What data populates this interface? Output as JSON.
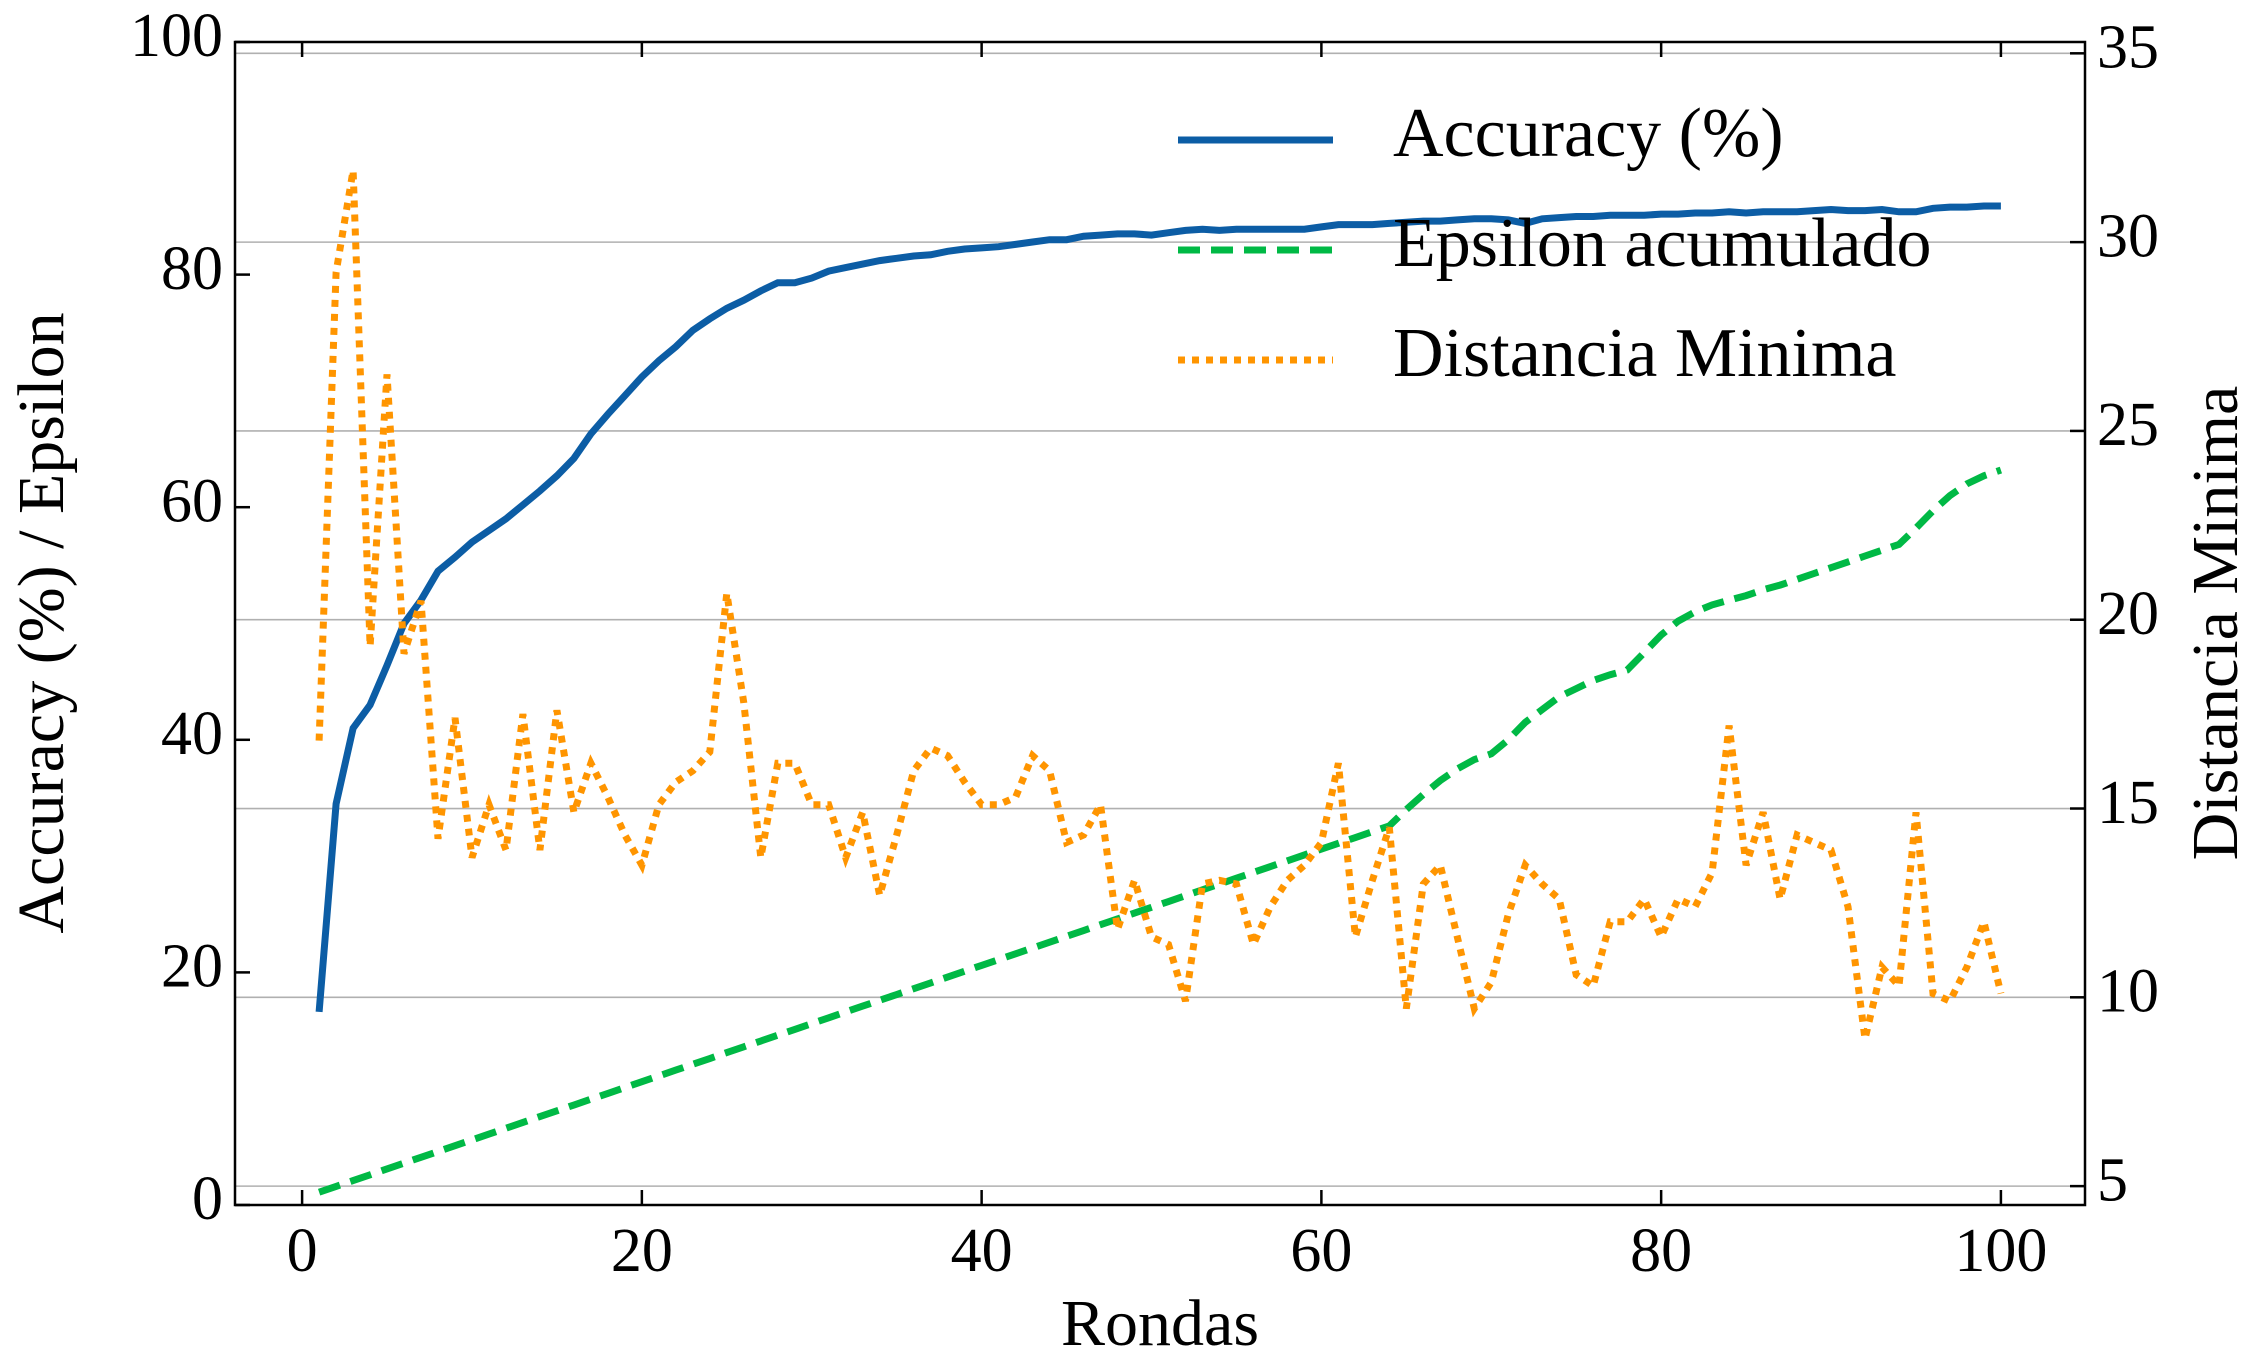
{
  "chart_data": {
    "type": "line",
    "x_label": "Rondas",
    "y_label": "Accuracy (%) / Epsilon",
    "y2_label": "Distancia Minima",
    "x": [
      1,
      2,
      3,
      4,
      5,
      6,
      7,
      8,
      9,
      10,
      11,
      12,
      13,
      14,
      15,
      16,
      17,
      18,
      19,
      20,
      21,
      22,
      23,
      24,
      25,
      26,
      27,
      28,
      29,
      30,
      31,
      32,
      33,
      34,
      35,
      36,
      37,
      38,
      39,
      40,
      41,
      42,
      43,
      44,
      45,
      46,
      47,
      48,
      49,
      50,
      51,
      52,
      53,
      54,
      55,
      56,
      57,
      58,
      59,
      60,
      61,
      62,
      63,
      64,
      65,
      66,
      67,
      68,
      69,
      70,
      71,
      72,
      73,
      74,
      75,
      76,
      77,
      78,
      79,
      80,
      81,
      82,
      83,
      84,
      85,
      86,
      87,
      88,
      89,
      90,
      91,
      92,
      93,
      94,
      95,
      96,
      97,
      98,
      99,
      100
    ],
    "series": [
      {
        "name": "Accuracy (%)",
        "color": "#0c5da5",
        "dash": "solid",
        "values": [
          16.6,
          34.5,
          41,
          43,
          46.4,
          50,
          52,
          54.5,
          55.7,
          57,
          58,
          59,
          60.2,
          61.4,
          62.7,
          64.2,
          66.3,
          68,
          69.6,
          71.2,
          72.6,
          73.8,
          75.2,
          76.2,
          77.1,
          77.8,
          78.6,
          79.3,
          79.3,
          79.7,
          80.3,
          80.6,
          80.9,
          81.2,
          81.4,
          81.6,
          81.7,
          82,
          82.2,
          82.3,
          82.4,
          82.6,
          82.8,
          83,
          83,
          83.3,
          83.4,
          83.5,
          83.5,
          83.4,
          83.6,
          83.8,
          83.9,
          83.8,
          83.9,
          83.9,
          83.9,
          83.9,
          83.9,
          84.1,
          84.3,
          84.3,
          84.3,
          84.4,
          84.5,
          84.6,
          84.6,
          84.7,
          84.8,
          84.8,
          84.7,
          84.4,
          84.8,
          84.9,
          85,
          85,
          85.1,
          85.1,
          85.1,
          85.2,
          85.2,
          85.3,
          85.3,
          85.4,
          85.3,
          85.4,
          85.4,
          85.4,
          85.5,
          85.6,
          85.5,
          85.5,
          85.6,
          85.4,
          85.4,
          85.7,
          85.8,
          85.8,
          85.9,
          85.9
        ]
      },
      {
        "name": "Epsilon acumulado",
        "color": "#00b945",
        "dash": "dashed",
        "values": [
          1.1,
          1.6,
          2.1,
          2.6,
          3.1,
          3.6,
          4.1,
          4.6,
          5.1,
          5.6,
          6.1,
          6.6,
          7.1,
          7.6,
          8.1,
          8.6,
          9.1,
          9.6,
          10.1,
          10.6,
          11.1,
          11.6,
          12.1,
          12.6,
          13.1,
          13.6,
          14.1,
          14.6,
          15.1,
          15.6,
          16.1,
          16.6,
          17.1,
          17.6,
          18.1,
          18.6,
          19.1,
          19.6,
          20.1,
          20.6,
          21.1,
          21.6,
          22.1,
          22.6,
          23.1,
          23.6,
          24.1,
          24.6,
          25.1,
          25.6,
          26.1,
          26.6,
          27.1,
          27.6,
          28.1,
          28.6,
          29.1,
          29.6,
          30.1,
          30.6,
          31.1,
          31.6,
          32.1,
          32.6,
          34,
          35.3,
          36.5,
          37.5,
          38.3,
          38.8,
          40,
          41.5,
          42.6,
          43.7,
          44.4,
          45.1,
          45.6,
          46,
          47.5,
          49,
          50.2,
          51,
          51.6,
          52,
          52.4,
          52.9,
          53.3,
          53.8,
          54.3,
          54.8,
          55.3,
          55.8,
          56.3,
          56.8,
          58.2,
          59.7,
          61,
          62,
          62.7,
          63.2
        ]
      },
      {
        "name": "Distancia Minima",
        "color": "#ff9500",
        "dash": "dotted",
        "axis": "y2",
        "values": [
          16.8,
          29.2,
          31.9,
          19.3,
          26.5,
          19.1,
          20.5,
          14.2,
          17.4,
          13.7,
          15.1,
          13.9,
          17.5,
          13.9,
          17.6,
          14.9,
          16.2,
          15.3,
          14.3,
          13.5,
          15.1,
          15.7,
          16,
          16.5,
          20.7,
          17.8,
          13.7,
          16.2,
          16.2,
          15.1,
          15.1,
          13.7,
          14.9,
          12.7,
          14.3,
          16,
          16.6,
          16.4,
          15.7,
          15.1,
          15.1,
          15.3,
          16.4,
          16,
          14.1,
          14.3,
          15.1,
          11.8,
          13.1,
          11.6,
          11.4,
          9.9,
          13,
          13.1,
          13,
          11.4,
          12.4,
          13.1,
          13.5,
          14.1,
          16.2,
          11.6,
          13.1,
          14.5,
          9.7,
          13,
          13.5,
          11.6,
          9.7,
          10.4,
          12.2,
          13.5,
          13,
          12.6,
          10.6,
          10.3,
          12,
          12,
          12.6,
          11.6,
          12.6,
          12.4,
          13.3,
          17.2,
          13.5,
          14.9,
          12.6,
          14.3,
          14.1,
          13.9,
          12.4,
          8.9,
          10.8,
          10.3,
          14.9,
          10.1,
          9.9,
          10.8,
          12,
          10.1
        ]
      }
    ],
    "xlim": [
      -3.95,
      104.95
    ],
    "xticks": [
      0,
      20,
      40,
      60,
      80,
      100
    ],
    "ylim": [
      0,
      100
    ],
    "yticks": [
      0,
      20,
      40,
      60,
      80,
      100
    ],
    "y2lim": [
      4.5,
      35.3
    ],
    "y2ticks": [
      5,
      10,
      15,
      20,
      25,
      30,
      35
    ],
    "grid": "y2",
    "legend": "upper right"
  }
}
